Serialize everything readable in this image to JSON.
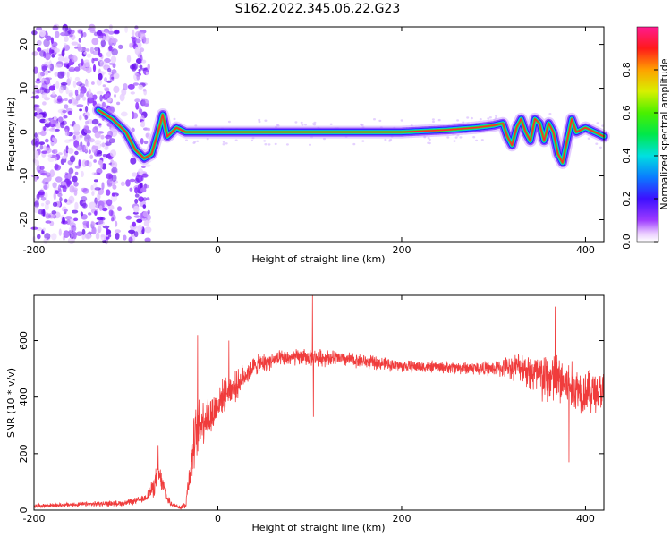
{
  "title": "S162.2022.345.06.22.G23",
  "chart_data": [
    {
      "type": "heatmap",
      "xlabel": "Height of straight line (km)",
      "ylabel": "Frequency (Hz)",
      "xlim": [
        -200,
        420
      ],
      "ylim": [
        -25,
        24
      ],
      "x_ticks": [
        -200,
        0,
        200,
        400
      ],
      "y_ticks": [
        -20,
        -10,
        0,
        10,
        20
      ],
      "colorbar": {
        "label": "Normalized spectral amplitude",
        "range": [
          0,
          1
        ],
        "ticks": [
          0.0,
          0.2,
          0.4,
          0.6,
          0.8
        ]
      },
      "ridge": {
        "x": [
          -130,
          -115,
          -100,
          -90,
          -80,
          -72,
          -65,
          -60,
          -55,
          -45,
          -35,
          -20,
          0,
          50,
          100,
          150,
          200,
          250,
          280,
          300,
          310,
          315,
          320,
          325,
          330,
          335,
          340,
          345,
          350,
          355,
          360,
          365,
          370,
          375,
          380,
          385,
          390,
          400,
          410,
          420
        ],
        "y": [
          5,
          3,
          0,
          -4,
          -6,
          -5,
          0,
          4,
          -1,
          1,
          0,
          0,
          0,
          0,
          0,
          0,
          0,
          0.5,
          1,
          1.5,
          2,
          -1,
          -3,
          1,
          3,
          0,
          -2,
          3,
          2,
          -2,
          2,
          0,
          -5,
          -7,
          -2,
          3,
          0,
          1,
          0,
          -1
        ]
      },
      "noise_region_x": [
        -200,
        -75
      ],
      "gap_region_x": [
        -110,
        -95
      ]
    },
    {
      "type": "line",
      "xlabel": "Height of straight line (km)",
      "ylabel": "SNR (10 * v/v)",
      "xlim": [
        -200,
        420
      ],
      "ylim": [
        0,
        760
      ],
      "x_ticks": [
        -200,
        0,
        200,
        400
      ],
      "y_ticks": [
        0,
        200,
        400,
        600
      ],
      "series_color": "#f03c3c",
      "envelope": {
        "x": [
          -200,
          -150,
          -100,
          -80,
          -70,
          -65,
          -60,
          -55,
          -50,
          -40,
          -35,
          -30,
          -25,
          -20,
          -15,
          -10,
          -5,
          0,
          10,
          20,
          30,
          40,
          50,
          60,
          80,
          100,
          120,
          150,
          200,
          250,
          300,
          330,
          350,
          370,
          390,
          410,
          420
        ],
        "mean": [
          15,
          20,
          25,
          40,
          80,
          130,
          90,
          40,
          20,
          10,
          20,
          150,
          250,
          300,
          330,
          330,
          340,
          380,
          420,
          440,
          480,
          510,
          520,
          530,
          540,
          540,
          540,
          530,
          510,
          505,
          500,
          510,
          470,
          460,
          430,
          420,
          420
        ],
        "noise": [
          8,
          10,
          12,
          15,
          40,
          60,
          40,
          20,
          10,
          10,
          20,
          80,
          120,
          120,
          100,
          100,
          90,
          80,
          60,
          60,
          50,
          40,
          40,
          35,
          35,
          35,
          35,
          30,
          25,
          25,
          30,
          60,
          110,
          110,
          100,
          90,
          80
        ]
      },
      "spikes": [
        {
          "x": 103,
          "y": 770
        },
        {
          "x": 104,
          "y": 330
        },
        {
          "x": 367,
          "y": 720
        },
        {
          "x": 382,
          "y": 170
        },
        {
          "x": -65,
          "y": 230
        },
        {
          "x": -22,
          "y": 620
        },
        {
          "x": 12,
          "y": 600
        }
      ]
    }
  ]
}
